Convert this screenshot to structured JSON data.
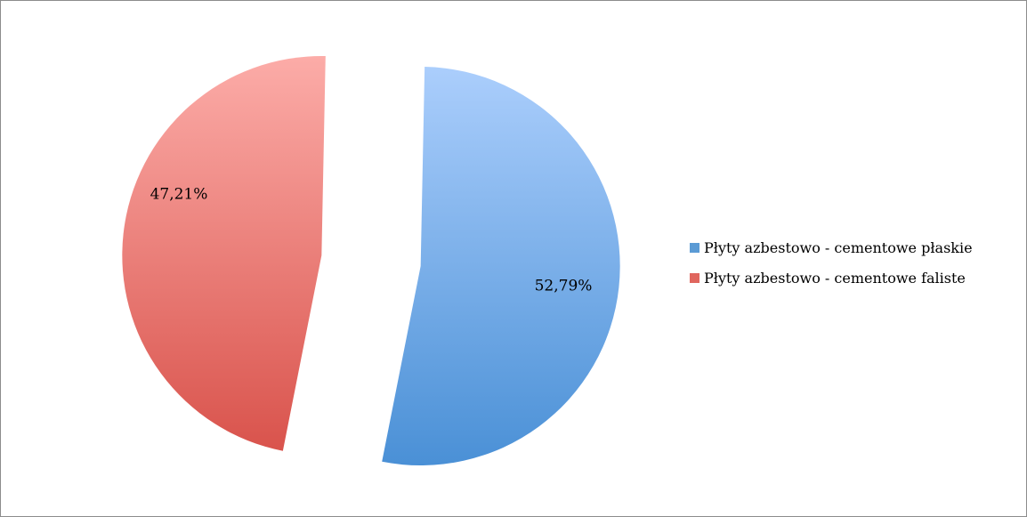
{
  "chart_data": {
    "type": "pie",
    "title": "",
    "categories": [
      "Płyty azbestowo - cementowe płaskie",
      "Płyty azbestowo - cementowe faliste"
    ],
    "values": [
      52.79,
      47.21
    ],
    "data_labels": [
      "52,79%",
      "47,21%"
    ],
    "colors": [
      "#5b9bd5",
      "#e0665e"
    ],
    "exploded": true,
    "legend_position": "right"
  },
  "legend": {
    "items": [
      {
        "label": "Płyty azbestowo - cementowe płaskie",
        "color": "#5b9bd5"
      },
      {
        "label": "Płyty azbestowo - cementowe faliste",
        "color": "#e0665e"
      }
    ]
  }
}
